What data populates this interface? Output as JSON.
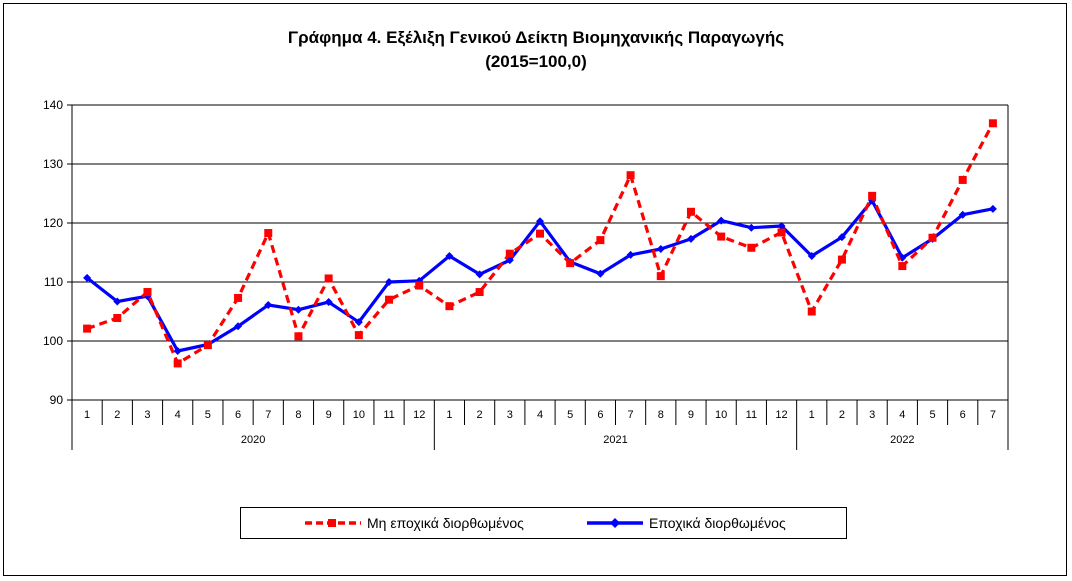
{
  "chart_data": {
    "type": "line",
    "title_line1": "Γράφημα 4. Εξέλιξη Γενικού Δείκτη Βιομηχανικής Παραγωγής",
    "title_line2": "(2015=100,0)",
    "ylim": [
      90,
      140
    ],
    "yticks": [
      "90",
      "100",
      "110",
      "120",
      "130",
      "140"
    ],
    "grid": true,
    "legend_position": "bottom",
    "months": [
      "1",
      "2",
      "3",
      "4",
      "5",
      "6",
      "7",
      "8",
      "9",
      "10",
      "11",
      "12",
      "1",
      "2",
      "3",
      "4",
      "5",
      "6",
      "7",
      "8",
      "9",
      "10",
      "11",
      "12",
      "1",
      "2",
      "3",
      "4",
      "5",
      "6",
      "7"
    ],
    "years": [
      {
        "label": "2020",
        "count": 12
      },
      {
        "label": "2021",
        "count": 12
      },
      {
        "label": "2022",
        "count": 7
      }
    ],
    "series": [
      {
        "name": "Μη εποχικά διορθωμένος",
        "color": "#ff0000",
        "style": "dashed",
        "marker": "square",
        "values": [
          102.1,
          103.9,
          108.3,
          96.2,
          99.3,
          107.3,
          118.3,
          100.8,
          110.6,
          101.0,
          107.0,
          109.4,
          105.9,
          108.3,
          114.8,
          118.2,
          113.2,
          117.1,
          128.1,
          111.0,
          121.9,
          117.7,
          115.8,
          118.4,
          105.0,
          113.8,
          124.6,
          112.7,
          117.5,
          127.3,
          136.9
        ]
      },
      {
        "name": "Εποχικά διορθωμένος",
        "color": "#0000ff",
        "style": "solid",
        "marker": "diamond",
        "values": [
          110.7,
          106.7,
          107.6,
          98.3,
          99.4,
          102.5,
          106.1,
          105.3,
          106.6,
          103.2,
          110.0,
          110.2,
          114.4,
          111.3,
          113.7,
          120.3,
          113.4,
          111.4,
          114.6,
          115.6,
          117.3,
          120.4,
          119.2,
          119.5,
          114.4,
          117.6,
          123.8,
          114.1,
          117.3,
          121.4,
          122.4
        ]
      }
    ]
  }
}
